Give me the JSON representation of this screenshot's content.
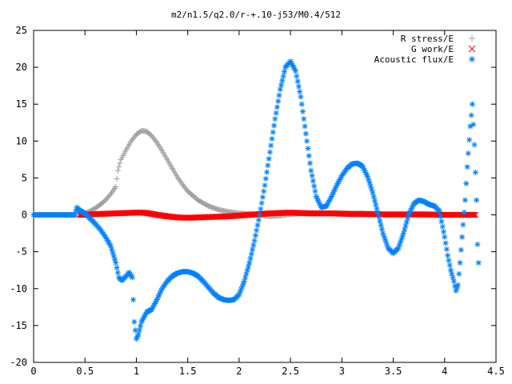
{
  "chart_data": {
    "type": "scatter",
    "title": "m2/n1.5/q2.0/r-+.10-j53/M0.4/512",
    "xlabel": "",
    "ylabel": "",
    "xlim": [
      0,
      4.5
    ],
    "ylim": [
      -20,
      25
    ],
    "x_ticks": [
      "0",
      "0.5",
      "1",
      "1.5",
      "2",
      "2.5",
      "3",
      "3.5",
      "4",
      "4.5"
    ],
    "y_ticks": [
      "25",
      "20",
      "15",
      "10",
      "5",
      "0",
      "-5",
      "-10",
      "-15",
      "-20"
    ],
    "grid": false,
    "legend_position": "top-right",
    "series": [
      {
        "name": "R stress/E",
        "color": "#a0a0a0",
        "marker": "plus",
        "points": [
          [
            0.0,
            0
          ],
          [
            0.2,
            0
          ],
          [
            0.4,
            0
          ],
          [
            0.45,
            0
          ],
          [
            0.5,
            0.2
          ],
          [
            0.55,
            0.5
          ],
          [
            0.6,
            0.9
          ],
          [
            0.65,
            1.4
          ],
          [
            0.7,
            2.0
          ],
          [
            0.75,
            2.8
          ],
          [
            0.8,
            3.8
          ],
          [
            0.82,
            6.0
          ],
          [
            0.85,
            7.5
          ],
          [
            0.9,
            8.8
          ],
          [
            0.95,
            10.0
          ],
          [
            1.0,
            10.9
          ],
          [
            1.05,
            11.4
          ],
          [
            1.1,
            11.3
          ],
          [
            1.15,
            10.7
          ],
          [
            1.2,
            9.8
          ],
          [
            1.25,
            8.7
          ],
          [
            1.3,
            7.5
          ],
          [
            1.35,
            6.3
          ],
          [
            1.4,
            5.1
          ],
          [
            1.45,
            4.1
          ],
          [
            1.5,
            3.2
          ],
          [
            1.6,
            2.0
          ],
          [
            1.7,
            1.2
          ],
          [
            1.8,
            0.7
          ],
          [
            1.9,
            0.4
          ],
          [
            2.0,
            0.2
          ],
          [
            2.1,
            0.1
          ],
          [
            2.2,
            0.0
          ],
          [
            2.3,
            -0.2
          ],
          [
            2.4,
            -0.1
          ],
          [
            2.5,
            0.1
          ],
          [
            2.6,
            0.2
          ],
          [
            2.8,
            0.2
          ],
          [
            3.0,
            0.2
          ],
          [
            3.2,
            0.2
          ],
          [
            3.4,
            0.1
          ],
          [
            3.6,
            0.1
          ],
          [
            3.8,
            0.1
          ],
          [
            4.0,
            0.0
          ],
          [
            4.2,
            0.0
          ],
          [
            4.3,
            0.0
          ]
        ]
      },
      {
        "name": "G work/E",
        "color": "#ff0000",
        "marker": "cross",
        "points": [
          [
            0.45,
            0
          ],
          [
            0.5,
            0
          ],
          [
            0.6,
            0.1
          ],
          [
            0.7,
            0.15
          ],
          [
            0.8,
            0.2
          ],
          [
            0.9,
            0.25
          ],
          [
            1.0,
            0.3
          ],
          [
            1.05,
            0.3
          ],
          [
            1.1,
            0.25
          ],
          [
            1.2,
            0.0
          ],
          [
            1.3,
            -0.2
          ],
          [
            1.4,
            -0.35
          ],
          [
            1.5,
            -0.4
          ],
          [
            1.6,
            -0.35
          ],
          [
            1.7,
            -0.3
          ],
          [
            1.8,
            -0.25
          ],
          [
            1.9,
            -0.2
          ],
          [
            2.0,
            -0.1
          ],
          [
            2.1,
            0.0
          ],
          [
            2.2,
            0.1
          ],
          [
            2.3,
            0.2
          ],
          [
            2.4,
            0.25
          ],
          [
            2.5,
            0.3
          ],
          [
            2.6,
            0.25
          ],
          [
            2.7,
            0.2
          ],
          [
            2.8,
            0.2
          ],
          [
            2.9,
            0.2
          ],
          [
            3.0,
            0.15
          ],
          [
            3.1,
            0.1
          ],
          [
            3.2,
            0.1
          ],
          [
            3.4,
            0.05
          ],
          [
            3.6,
            0.05
          ],
          [
            3.8,
            0.05
          ],
          [
            4.0,
            0.0
          ],
          [
            4.2,
            0.0
          ],
          [
            4.3,
            0.0
          ]
        ]
      },
      {
        "name": "Acoustic flux/E",
        "color": "#0080ff",
        "marker": "star",
        "points": [
          [
            0.0,
            0
          ],
          [
            0.1,
            0
          ],
          [
            0.2,
            0
          ],
          [
            0.3,
            0
          ],
          [
            0.4,
            0
          ],
          [
            0.42,
            1.0
          ],
          [
            0.45,
            0.6
          ],
          [
            0.5,
            0.2
          ],
          [
            0.55,
            -0.5
          ],
          [
            0.6,
            -1.2
          ],
          [
            0.65,
            -2.0
          ],
          [
            0.7,
            -3.0
          ],
          [
            0.75,
            -4.2
          ],
          [
            0.8,
            -6.5
          ],
          [
            0.83,
            -8.5
          ],
          [
            0.86,
            -8.9
          ],
          [
            0.9,
            -8.3
          ],
          [
            0.93,
            -7.8
          ],
          [
            0.96,
            -8.5
          ],
          [
            0.98,
            -14.5
          ],
          [
            1.0,
            -16.8
          ],
          [
            1.02,
            -16.2
          ],
          [
            1.05,
            -14.5
          ],
          [
            1.1,
            -13.2
          ],
          [
            1.15,
            -12.8
          ],
          [
            1.2,
            -11.5
          ],
          [
            1.25,
            -10.0
          ],
          [
            1.3,
            -9.0
          ],
          [
            1.35,
            -8.3
          ],
          [
            1.4,
            -7.9
          ],
          [
            1.45,
            -7.7
          ],
          [
            1.5,
            -7.7
          ],
          [
            1.55,
            -7.9
          ],
          [
            1.6,
            -8.3
          ],
          [
            1.65,
            -9.0
          ],
          [
            1.7,
            -9.8
          ],
          [
            1.75,
            -10.6
          ],
          [
            1.8,
            -11.2
          ],
          [
            1.85,
            -11.5
          ],
          [
            1.9,
            -11.6
          ],
          [
            1.95,
            -11.5
          ],
          [
            2.0,
            -10.8
          ],
          [
            2.05,
            -9.0
          ],
          [
            2.1,
            -6.5
          ],
          [
            2.15,
            -3.5
          ],
          [
            2.2,
            0.0
          ],
          [
            2.25,
            4.0
          ],
          [
            2.3,
            8.5
          ],
          [
            2.35,
            13.0
          ],
          [
            2.4,
            17.0
          ],
          [
            2.45,
            20.0
          ],
          [
            2.5,
            20.8
          ],
          [
            2.55,
            19.5
          ],
          [
            2.6,
            16.0
          ],
          [
            2.65,
            11.0
          ],
          [
            2.7,
            6.0
          ],
          [
            2.75,
            2.5
          ],
          [
            2.8,
            1.0
          ],
          [
            2.85,
            1.2
          ],
          [
            2.9,
            2.5
          ],
          [
            2.95,
            4.0
          ],
          [
            3.0,
            5.3
          ],
          [
            3.05,
            6.3
          ],
          [
            3.1,
            6.9
          ],
          [
            3.15,
            7.0
          ],
          [
            3.2,
            6.6
          ],
          [
            3.25,
            5.2
          ],
          [
            3.3,
            3.0
          ],
          [
            3.35,
            0.3
          ],
          [
            3.4,
            -2.5
          ],
          [
            3.45,
            -4.5
          ],
          [
            3.5,
            -5.2
          ],
          [
            3.55,
            -4.5
          ],
          [
            3.6,
            -2.5
          ],
          [
            3.65,
            0.0
          ],
          [
            3.7,
            1.5
          ],
          [
            3.75,
            2.0
          ],
          [
            3.8,
            1.8
          ],
          [
            3.85,
            1.4
          ],
          [
            3.9,
            1.2
          ],
          [
            3.95,
            0.5
          ],
          [
            4.0,
            -3.0
          ],
          [
            4.03,
            -5.5
          ],
          [
            4.06,
            -7.5
          ],
          [
            4.09,
            -9.0
          ],
          [
            4.11,
            -10.3
          ],
          [
            4.13,
            -9.5
          ],
          [
            4.15,
            -6.5
          ],
          [
            4.17,
            -3.0
          ],
          [
            4.2,
            2.0
          ],
          [
            4.22,
            6.5
          ],
          [
            4.25,
            12.0
          ],
          [
            4.27,
            15.0
          ],
          [
            4.29,
            9.5
          ],
          [
            4.31,
            2.0
          ],
          [
            4.32,
            -4.0
          ],
          [
            4.33,
            -6.5
          ]
        ]
      }
    ]
  }
}
